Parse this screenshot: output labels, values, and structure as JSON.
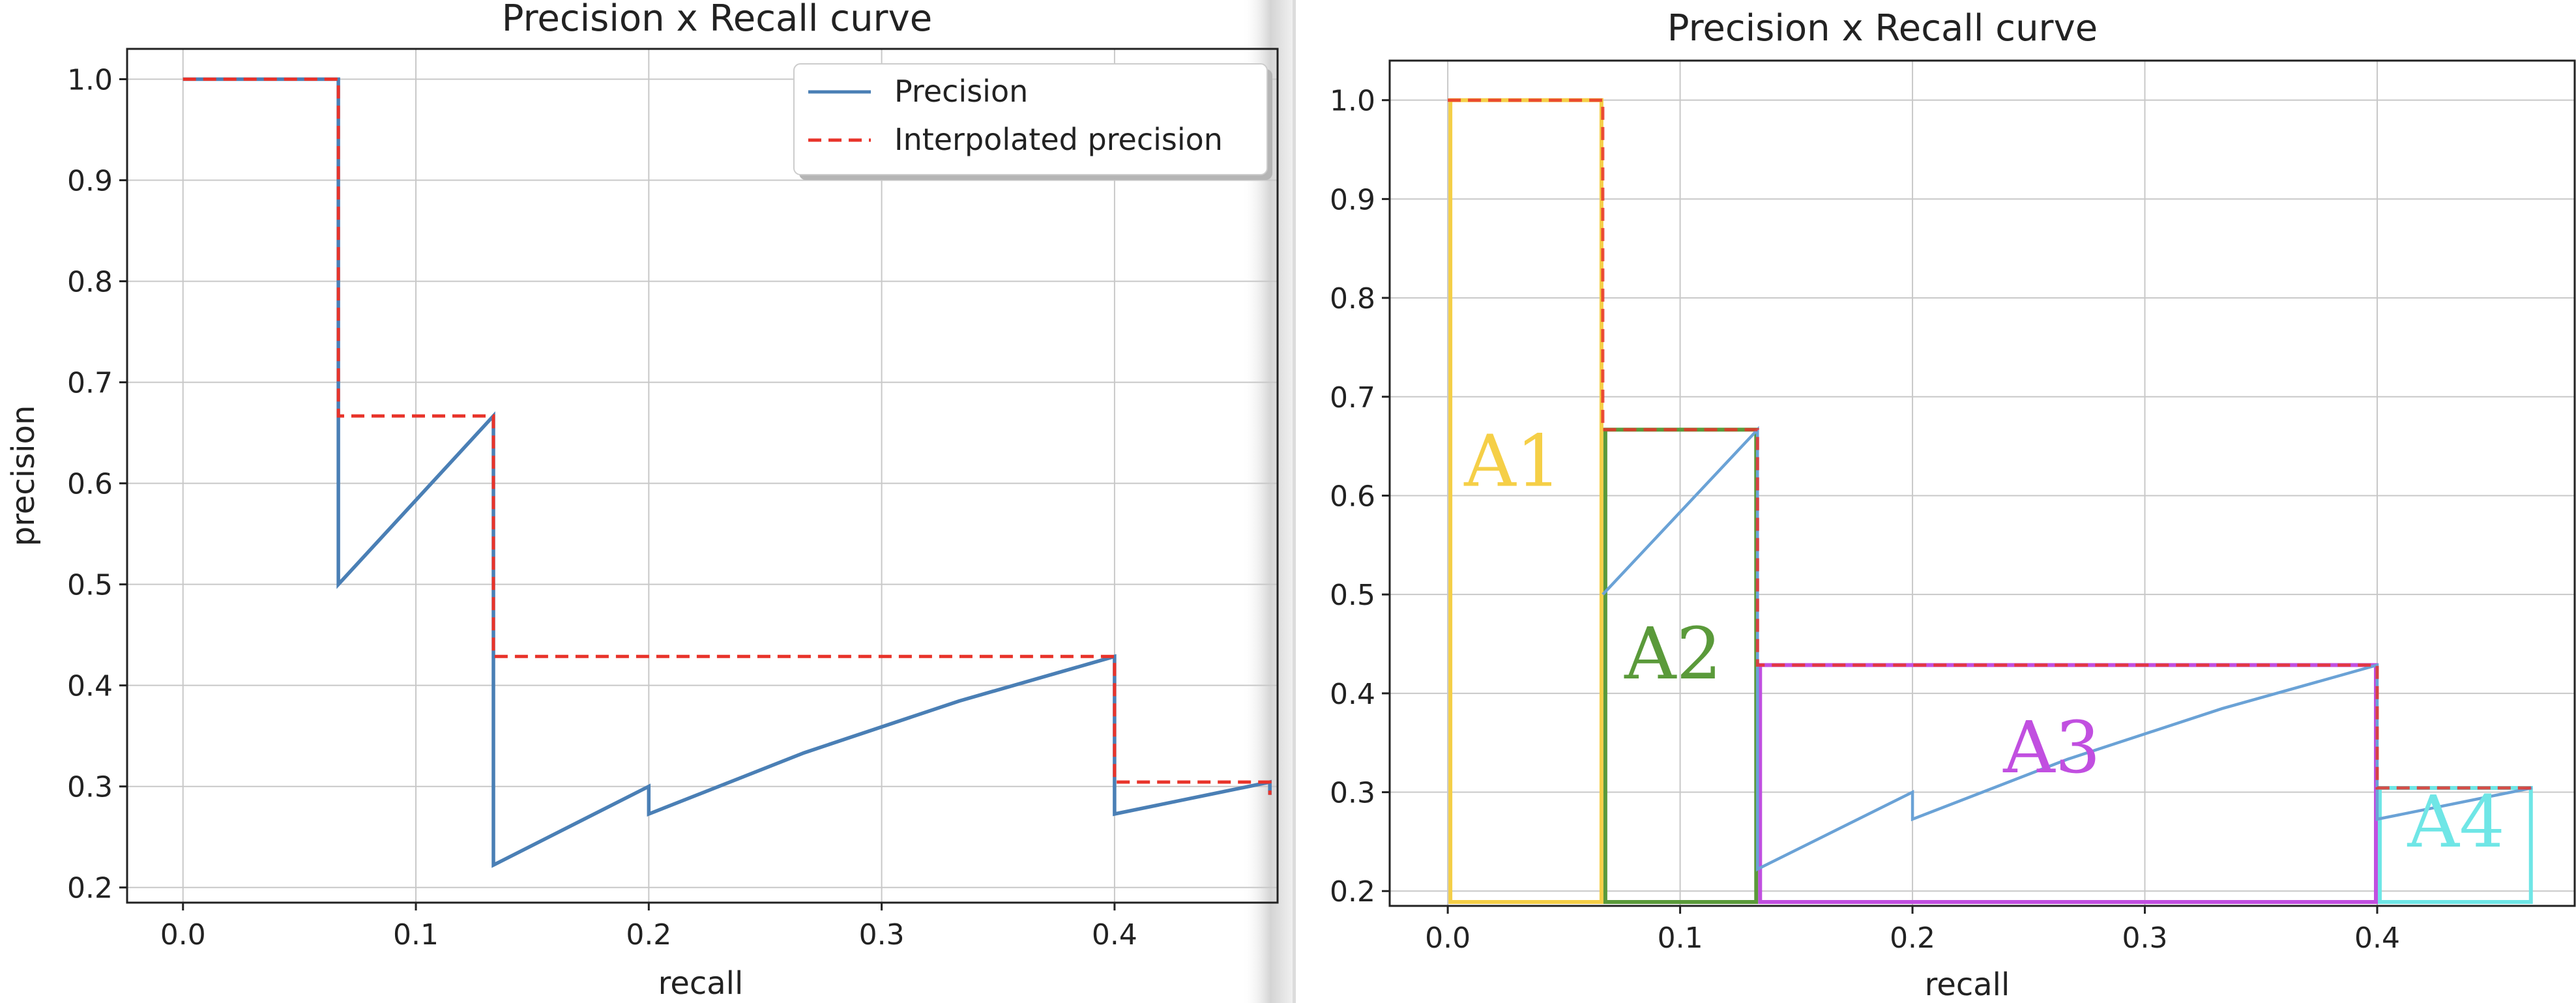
{
  "colors": {
    "precision": "#4a7fb5",
    "precision_light": "#6aa2d6",
    "interpolated": "#e8332a",
    "grid": "#c8c8c8",
    "axis": "#222222",
    "a1": "#f5cf47",
    "a2": "#5a9a3a",
    "a3": "#c14fe0",
    "a4": "#6fe6e6"
  },
  "chart_data": [
    {
      "type": "line",
      "title": "Precision x Recall curve",
      "xlabel": "recall",
      "ylabel": "precision",
      "xlim": [
        -0.024,
        0.47
      ],
      "ylim": [
        0.185,
        1.03
      ],
      "grid": true,
      "legend_position": "top-right",
      "xticks": [
        "0.0",
        "0.1",
        "0.2",
        "0.3",
        "0.4"
      ],
      "yticks": [
        "0.2",
        "0.3",
        "0.4",
        "0.5",
        "0.6",
        "0.7",
        "0.8",
        "0.9",
        "1.0"
      ],
      "series": [
        {
          "name": "Precision",
          "style": "solid",
          "x": [
            0.0,
            0.0667,
            0.0667,
            0.1333,
            0.1333,
            0.1333,
            0.2,
            0.2,
            0.2667,
            0.3333,
            0.4,
            0.4,
            0.4667,
            0.4667
          ],
          "y": [
            1.0,
            1.0,
            0.5,
            0.6667,
            0.4286,
            0.2222,
            0.3,
            0.2727,
            0.3333,
            0.3846,
            0.4286,
            0.2727,
            0.3043,
            0.2917
          ]
        },
        {
          "name": "Interpolated precision",
          "style": "dashed",
          "x": [
            0.0,
            0.0667,
            0.0667,
            0.1333,
            0.1333,
            0.4,
            0.4,
            0.4667,
            0.4667
          ],
          "y": [
            1.0,
            1.0,
            0.6667,
            0.6667,
            0.4286,
            0.4286,
            0.3043,
            0.3043,
            0.2917
          ]
        }
      ]
    },
    {
      "type": "line",
      "title": "Precision x Recall curve",
      "xlabel": "recall",
      "ylabel": "",
      "xlim": [
        -0.025,
        0.485
      ],
      "ylim": [
        0.185,
        1.04
      ],
      "grid": true,
      "xticks": [
        "0.0",
        "0.1",
        "0.2",
        "0.3",
        "0.4"
      ],
      "yticks": [
        "0.2",
        "0.3",
        "0.4",
        "0.5",
        "0.6",
        "0.7",
        "0.8",
        "0.9",
        "1.0"
      ],
      "series": [
        {
          "style": "solid",
          "x": [
            0.0667,
            0.1333,
            0.1333,
            0.1333,
            0.2,
            0.2,
            0.2667,
            0.3333,
            0.4,
            0.4,
            0.4667
          ],
          "y": [
            0.5,
            0.6667,
            0.4286,
            0.2222,
            0.3,
            0.2727,
            0.3333,
            0.3846,
            0.4286,
            0.2727,
            0.3043
          ]
        },
        {
          "style": "dashed",
          "x": [
            0.0,
            0.0667,
            0.0667,
            0.1333,
            0.1333,
            0.4,
            0.4,
            0.4667
          ],
          "y": [
            1.0,
            1.0,
            0.6667,
            0.6667,
            0.4286,
            0.4286,
            0.3043,
            0.3043
          ]
        }
      ],
      "regions": [
        {
          "label": "A1",
          "x0": 0.0,
          "x1": 0.0667,
          "top": 1.0,
          "color_key": "a1",
          "label_at": [
            0.028,
            0.61
          ]
        },
        {
          "label": "A2",
          "x0": 0.0667,
          "x1": 0.1333,
          "top": 0.6667,
          "color_key": "a2",
          "label_at": [
            0.097,
            0.415
          ]
        },
        {
          "label": "A3",
          "x0": 0.1333,
          "x1": 0.4,
          "top": 0.4286,
          "color_key": "a3",
          "label_at": [
            0.26,
            0.32
          ]
        },
        {
          "label": "A4",
          "x0": 0.4,
          "x1": 0.4667,
          "top": 0.3043,
          "color_key": "a4",
          "label_at": [
            0.434,
            0.245
          ]
        }
      ]
    }
  ]
}
